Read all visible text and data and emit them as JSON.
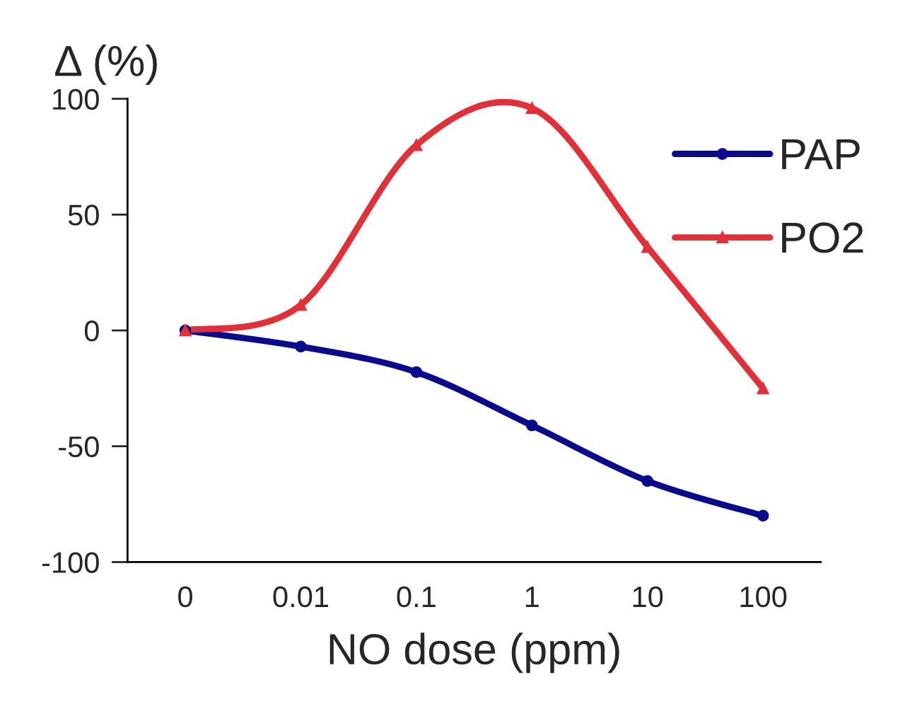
{
  "chart_data": {
    "type": "line",
    "ylabel": "Δ (%)",
    "xlabel": "NO dose (ppm)",
    "categories": [
      "0",
      "0.01",
      "0.1",
      "1",
      "10",
      "100"
    ],
    "series": [
      {
        "name": "PAP",
        "color": "#0a0a8c",
        "marker": "circle",
        "values": [
          0,
          -7,
          -18,
          -41,
          -65,
          -80
        ]
      },
      {
        "name": "PO2",
        "color": "#e0313a",
        "marker": "triangle",
        "values": [
          0,
          11,
          80,
          96,
          36,
          -25
        ]
      }
    ],
    "ylim": [
      -100,
      100
    ],
    "yticks": [
      -100,
      -50,
      0,
      50,
      100
    ],
    "grid": false,
    "legend": "top right",
    "line_style": "solid"
  }
}
